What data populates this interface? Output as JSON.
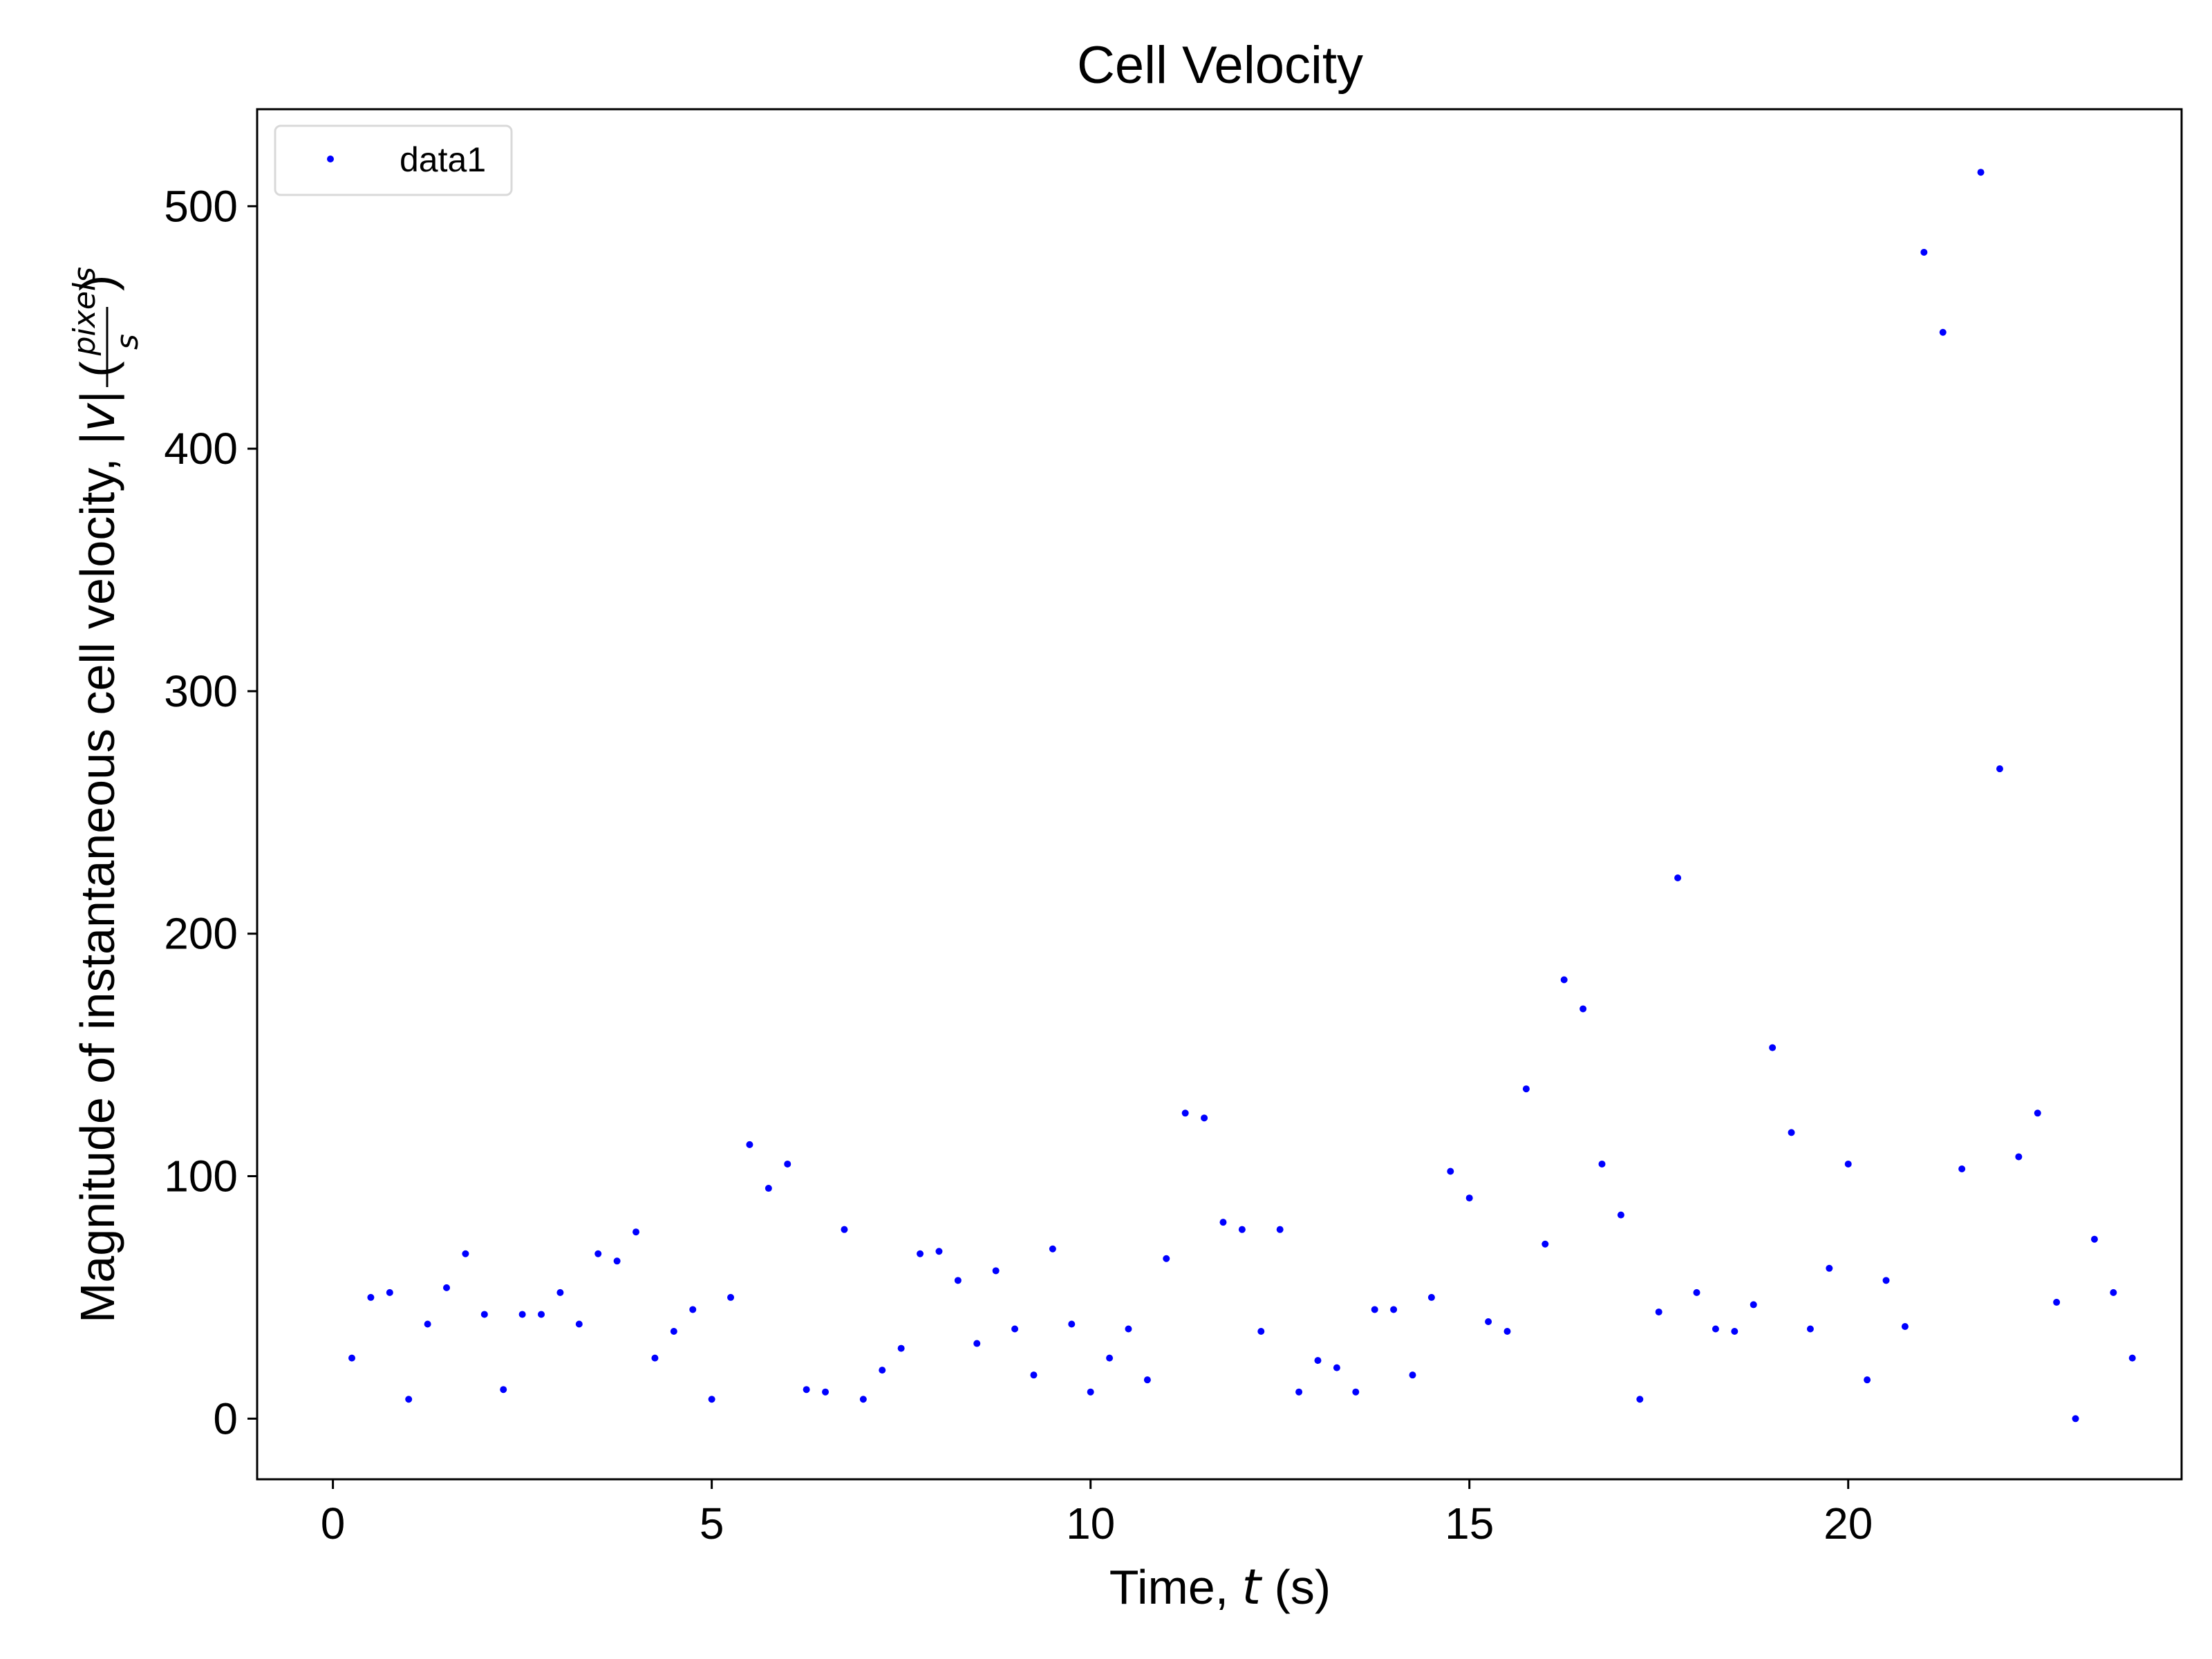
{
  "chart_data": {
    "type": "scatter",
    "title": "Cell Velocity",
    "xlabel_prefix": "Time, ",
    "xlabel_var": "t",
    "xlabel_suffix": " (s)",
    "ylabel_prefix": "Magnitude of instantaneous cell velocity, |",
    "ylabel_var": "v",
    "ylabel_suffix": "| (",
    "ylabel_unit_num": "pixels",
    "ylabel_unit_den": "s",
    "ylabel_close": ")",
    "xlim": [
      -1,
      24.4
    ],
    "ylim": [
      -25,
      540
    ],
    "xticks": [
      0,
      5,
      10,
      15,
      20
    ],
    "yticks": [
      0,
      100,
      200,
      300,
      400,
      500
    ],
    "grid": false,
    "legend_position": "top-left",
    "series": [
      {
        "name": "data1",
        "color": "#0000ff",
        "marker": "point",
        "x": [
          0.25,
          0.5,
          0.75,
          1.0,
          1.25,
          1.5,
          1.75,
          2.0,
          2.25,
          2.5,
          2.75,
          3.0,
          3.25,
          3.5,
          3.75,
          4.0,
          4.25,
          4.5,
          4.75,
          5.0,
          5.25,
          5.5,
          5.75,
          6.0,
          6.25,
          6.5,
          6.75,
          7.0,
          7.25,
          7.5,
          7.75,
          8.0,
          8.25,
          8.5,
          8.75,
          9.0,
          9.25,
          9.5,
          9.75,
          10.0,
          10.25,
          10.5,
          10.75,
          11.0,
          11.25,
          11.5,
          11.75,
          12.0,
          12.25,
          12.5,
          12.75,
          13.0,
          13.25,
          13.5,
          13.75,
          14.0,
          14.25,
          14.5,
          14.75,
          15.0,
          15.25,
          15.5,
          15.75,
          16.0,
          16.25,
          16.5,
          16.75,
          17.0,
          17.25,
          17.5,
          17.75,
          18.0,
          18.25,
          18.5,
          18.75,
          19.0,
          19.25,
          19.5,
          19.75,
          20.0,
          20.25,
          20.5,
          20.75,
          21.0,
          21.25,
          21.5,
          21.75,
          22.0,
          22.25,
          22.5,
          22.75,
          23.0,
          23.25,
          23.5,
          23.75
        ],
        "y": [
          25,
          50,
          52,
          8,
          39,
          54,
          68,
          43,
          12,
          43,
          43,
          52,
          39,
          68,
          65,
          77,
          25,
          36,
          45,
          8,
          50,
          113,
          95,
          105,
          12,
          11,
          78,
          8,
          20,
          29,
          68,
          69,
          57,
          31,
          61,
          37,
          18,
          70,
          39,
          11,
          25,
          37,
          16,
          66,
          126,
          124,
          81,
          78,
          36,
          78,
          11,
          24,
          21,
          11,
          45,
          45,
          18,
          50,
          102,
          91,
          40,
          36,
          136,
          72,
          181,
          169,
          105,
          84,
          8,
          44,
          223,
          52,
          37,
          36,
          47,
          153,
          118,
          37,
          62,
          105,
          16,
          57,
          38,
          481,
          448,
          103,
          514,
          268,
          108,
          126,
          48,
          0,
          74,
          52,
          25
        ]
      }
    ]
  }
}
